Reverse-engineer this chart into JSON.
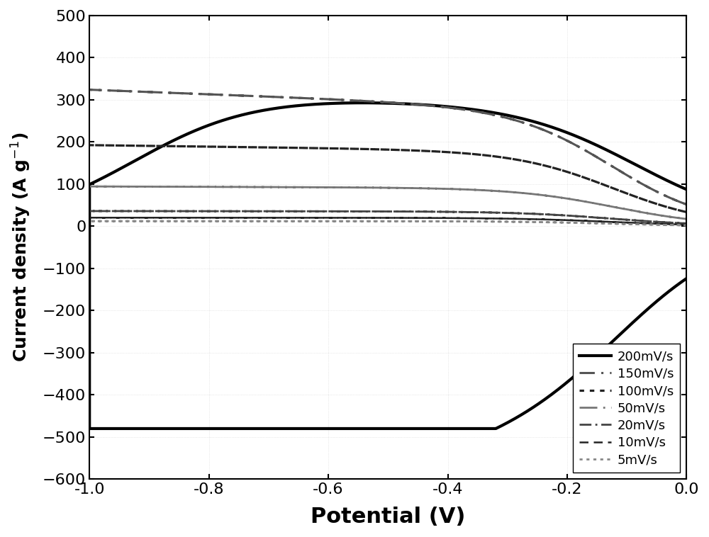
{
  "title": "",
  "xlabel": "Potential (V)",
  "xlim": [
    -1.0,
    0.0
  ],
  "ylim": [
    -600,
    500
  ],
  "yticks": [
    -600,
    -500,
    -400,
    -300,
    -200,
    -100,
    0,
    100,
    200,
    300,
    400,
    500
  ],
  "xticks": [
    -1.0,
    -0.8,
    -0.6,
    -0.4,
    -0.2,
    0.0
  ],
  "background_color": "#ffffff",
  "curves": [
    {
      "label": "200mV/s",
      "color": "#000000",
      "linestyle": "solid",
      "linewidth": 3.0,
      "I_cat": -460,
      "I_an": 320,
      "tilt": 0.55
    },
    {
      "label": "150mV/s",
      "color": "#555555",
      "linestyle": [
        0,
        [
          7,
          3,
          1,
          3
        ]
      ],
      "linewidth": 2.2,
      "I_cat": -270,
      "I_an": 270,
      "tilt": 0.2
    },
    {
      "label": "100mV/s",
      "color": "#222222",
      "linestyle": [
        0,
        [
          2,
          2.5
        ]
      ],
      "linewidth": 2.3,
      "I_cat": -175,
      "I_an": 175,
      "tilt": 0.1
    },
    {
      "label": "50mV/s",
      "color": "#777777",
      "linestyle": [
        0,
        [
          9,
          3,
          1,
          3
        ]
      ],
      "linewidth": 2.0,
      "I_cat": -90,
      "I_an": 90,
      "tilt": 0.05
    },
    {
      "label": "20mV/s",
      "color": "#444444",
      "linestyle": [
        0,
        [
          6,
          2,
          1,
          2
        ]
      ],
      "linewidth": 2.0,
      "I_cat": -35,
      "I_an": 35,
      "tilt": 0.03
    },
    {
      "label": "10mV/s",
      "color": "#222222",
      "linestyle": [
        0,
        [
          5,
          3
        ]
      ],
      "linewidth": 1.8,
      "I_cat": -20,
      "I_an": 20,
      "tilt": 0.02
    },
    {
      "label": "5mV/s",
      "color": "#888888",
      "linestyle": [
        0,
        [
          1.5,
          2.0
        ]
      ],
      "linewidth": 2.0,
      "I_cat": -12,
      "I_an": 12,
      "tilt": 0.01
    }
  ]
}
